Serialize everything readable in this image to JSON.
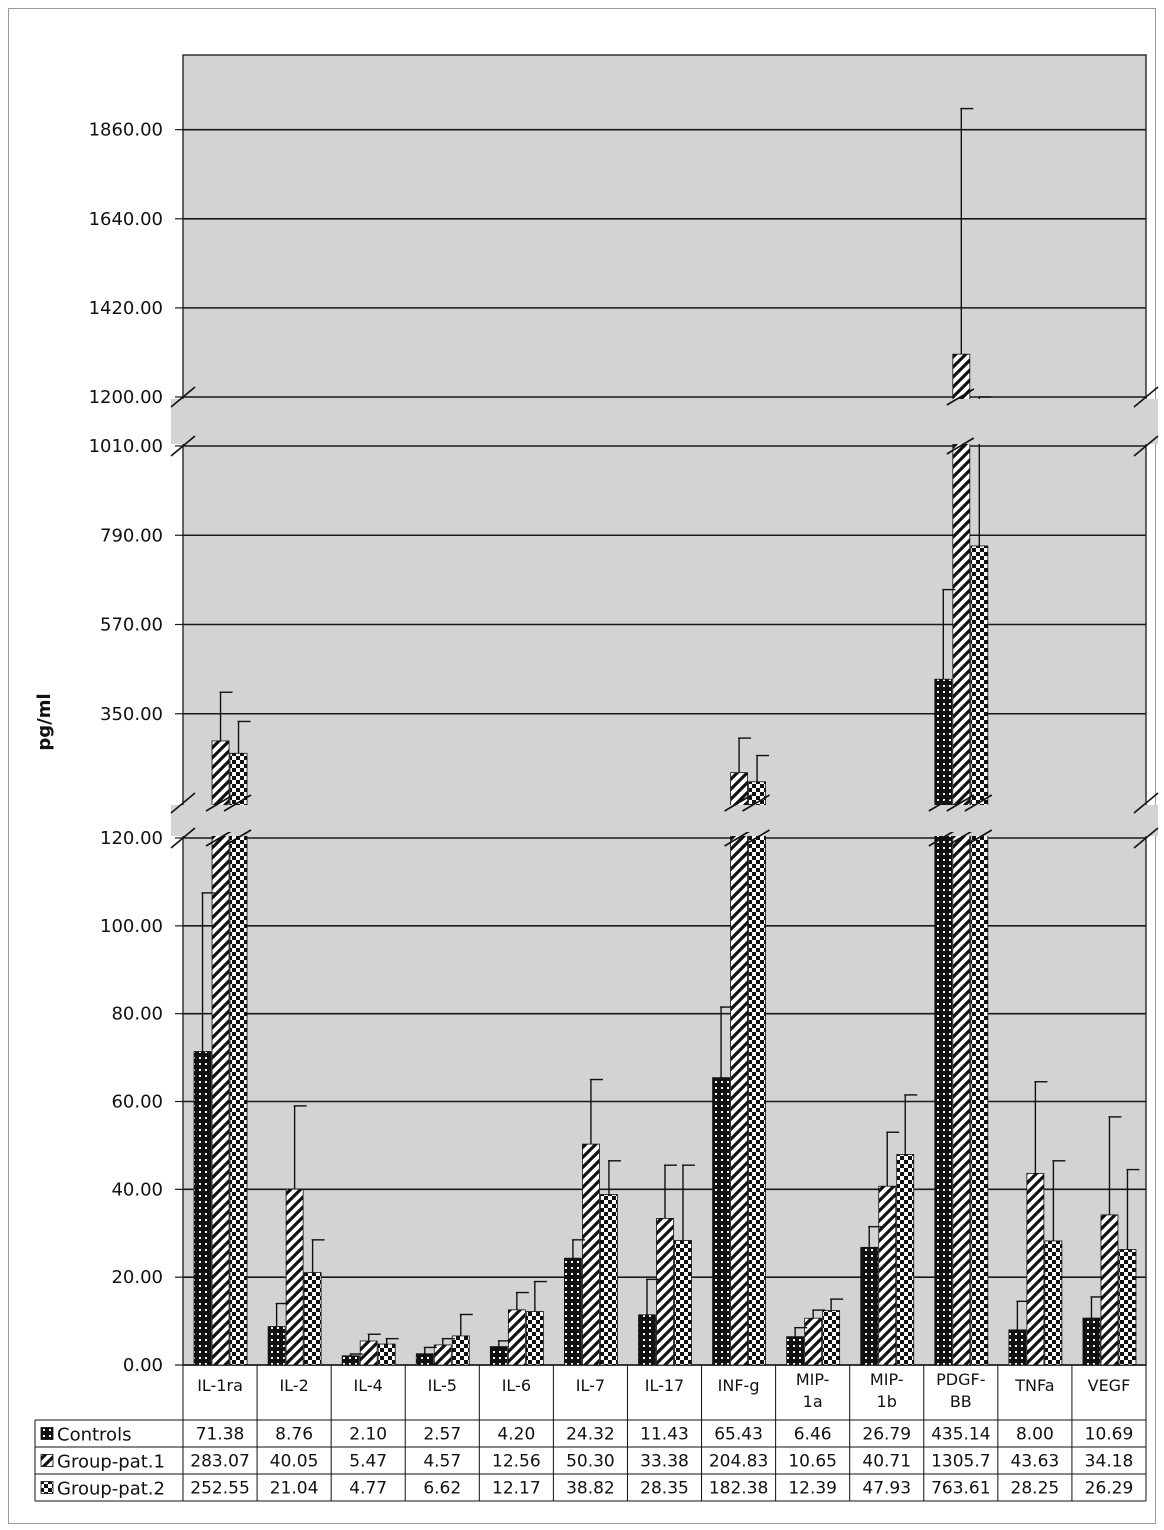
{
  "chart_data": {
    "type": "bar",
    "ylabel": "pg/ml",
    "xlabel": "",
    "title": "",
    "categories": [
      "IL-1ra",
      "IL-2",
      "IL-4",
      "IL-5",
      "IL-6",
      "IL-7",
      "IL-17",
      "INF-g",
      "MIP-1a",
      "MIP-1b",
      "PDGF-BB",
      "TNFa",
      "VEGF"
    ],
    "category_lines": [
      [
        "IL-1ra"
      ],
      [
        "IL-2"
      ],
      [
        "IL-4"
      ],
      [
        "IL-5"
      ],
      [
        "IL-6"
      ],
      [
        "IL-7"
      ],
      [
        "IL-17"
      ],
      [
        "INF-g"
      ],
      [
        "MIP-",
        "1a"
      ],
      [
        "MIP-",
        "1b"
      ],
      [
        "PDGF-",
        "BB"
      ],
      [
        "TNFa"
      ],
      [
        "VEGF"
      ]
    ],
    "series": [
      {
        "name": "Controls",
        "values": [
          71.38,
          8.76,
          2.1,
          2.57,
          4.2,
          24.32,
          11.43,
          65.43,
          6.46,
          26.79,
          435.14,
          8.0,
          10.69
        ],
        "value_labels": [
          "71.38",
          "8.76",
          "2.10",
          "2.57",
          "4.20",
          "24.32",
          "11.43",
          "65.43",
          "6.46",
          "26.79",
          "435.14",
          "8.00",
          "10.69"
        ],
        "error_upper": [
          107.5,
          14.0,
          2.5,
          4.0,
          5.5,
          28.5,
          19.5,
          81.5,
          8.5,
          31.5,
          656.0,
          14.5,
          15.5
        ],
        "pattern": "controls"
      },
      {
        "name": "Group-pat.1",
        "values": [
          283.07,
          40.05,
          5.47,
          4.57,
          12.56,
          50.3,
          33.38,
          204.83,
          10.65,
          40.71,
          1305.7,
          43.63,
          34.18
        ],
        "value_labels": [
          "283.07",
          "40.05",
          "5.47",
          "4.57",
          "12.56",
          "50.30",
          "33.38",
          "204.83",
          "10.65",
          "40.71",
          "1305.7",
          "43.63",
          "34.18"
        ],
        "error_upper": [
          403.0,
          59.0,
          7.0,
          6.0,
          16.5,
          65.0,
          45.5,
          290.0,
          12.5,
          53.0,
          1912.0,
          64.5,
          56.5
        ],
        "pattern": "group1"
      },
      {
        "name": "Group-pat.2",
        "values": [
          252.55,
          21.04,
          4.77,
          6.62,
          12.17,
          38.82,
          28.35,
          182.38,
          12.39,
          47.93,
          763.61,
          28.25,
          26.29
        ],
        "value_labels": [
          "252.55",
          "21.04",
          "4.77",
          "6.62",
          "12.17",
          "38.82",
          "28.35",
          "182.38",
          "12.39",
          "47.93",
          "763.61",
          "28.25",
          "26.29"
        ],
        "error_upper": [
          331.0,
          28.5,
          6.0,
          11.5,
          19.0,
          46.5,
          45.5,
          247.0,
          15.0,
          61.5,
          1012.0,
          46.5,
          44.5
        ],
        "pattern": "group2"
      }
    ],
    "y_axis_segments": [
      {
        "range": [
          0,
          120
        ],
        "ticks": [
          0,
          20,
          40,
          60,
          80,
          100,
          120
        ],
        "tick_labels": [
          "0.00",
          "20.00",
          "40.00",
          "60.00",
          "80.00",
          "100.00",
          "120.00"
        ]
      },
      {
        "range": [
          130,
          1010
        ],
        "ticks": [
          350,
          570,
          790,
          1010
        ],
        "tick_labels": [
          "350.00",
          "570.00",
          "790.00",
          "1010.00"
        ]
      },
      {
        "range": [
          1200,
          1990
        ],
        "ticks": [
          1200,
          1420,
          1640,
          1860
        ],
        "tick_labels": [
          "1200.00",
          "1420.00",
          "1640.00",
          "1860.00"
        ]
      }
    ],
    "grid": true,
    "legend_placement": "data-table-left",
    "plot_background": "#d3d3d3"
  }
}
